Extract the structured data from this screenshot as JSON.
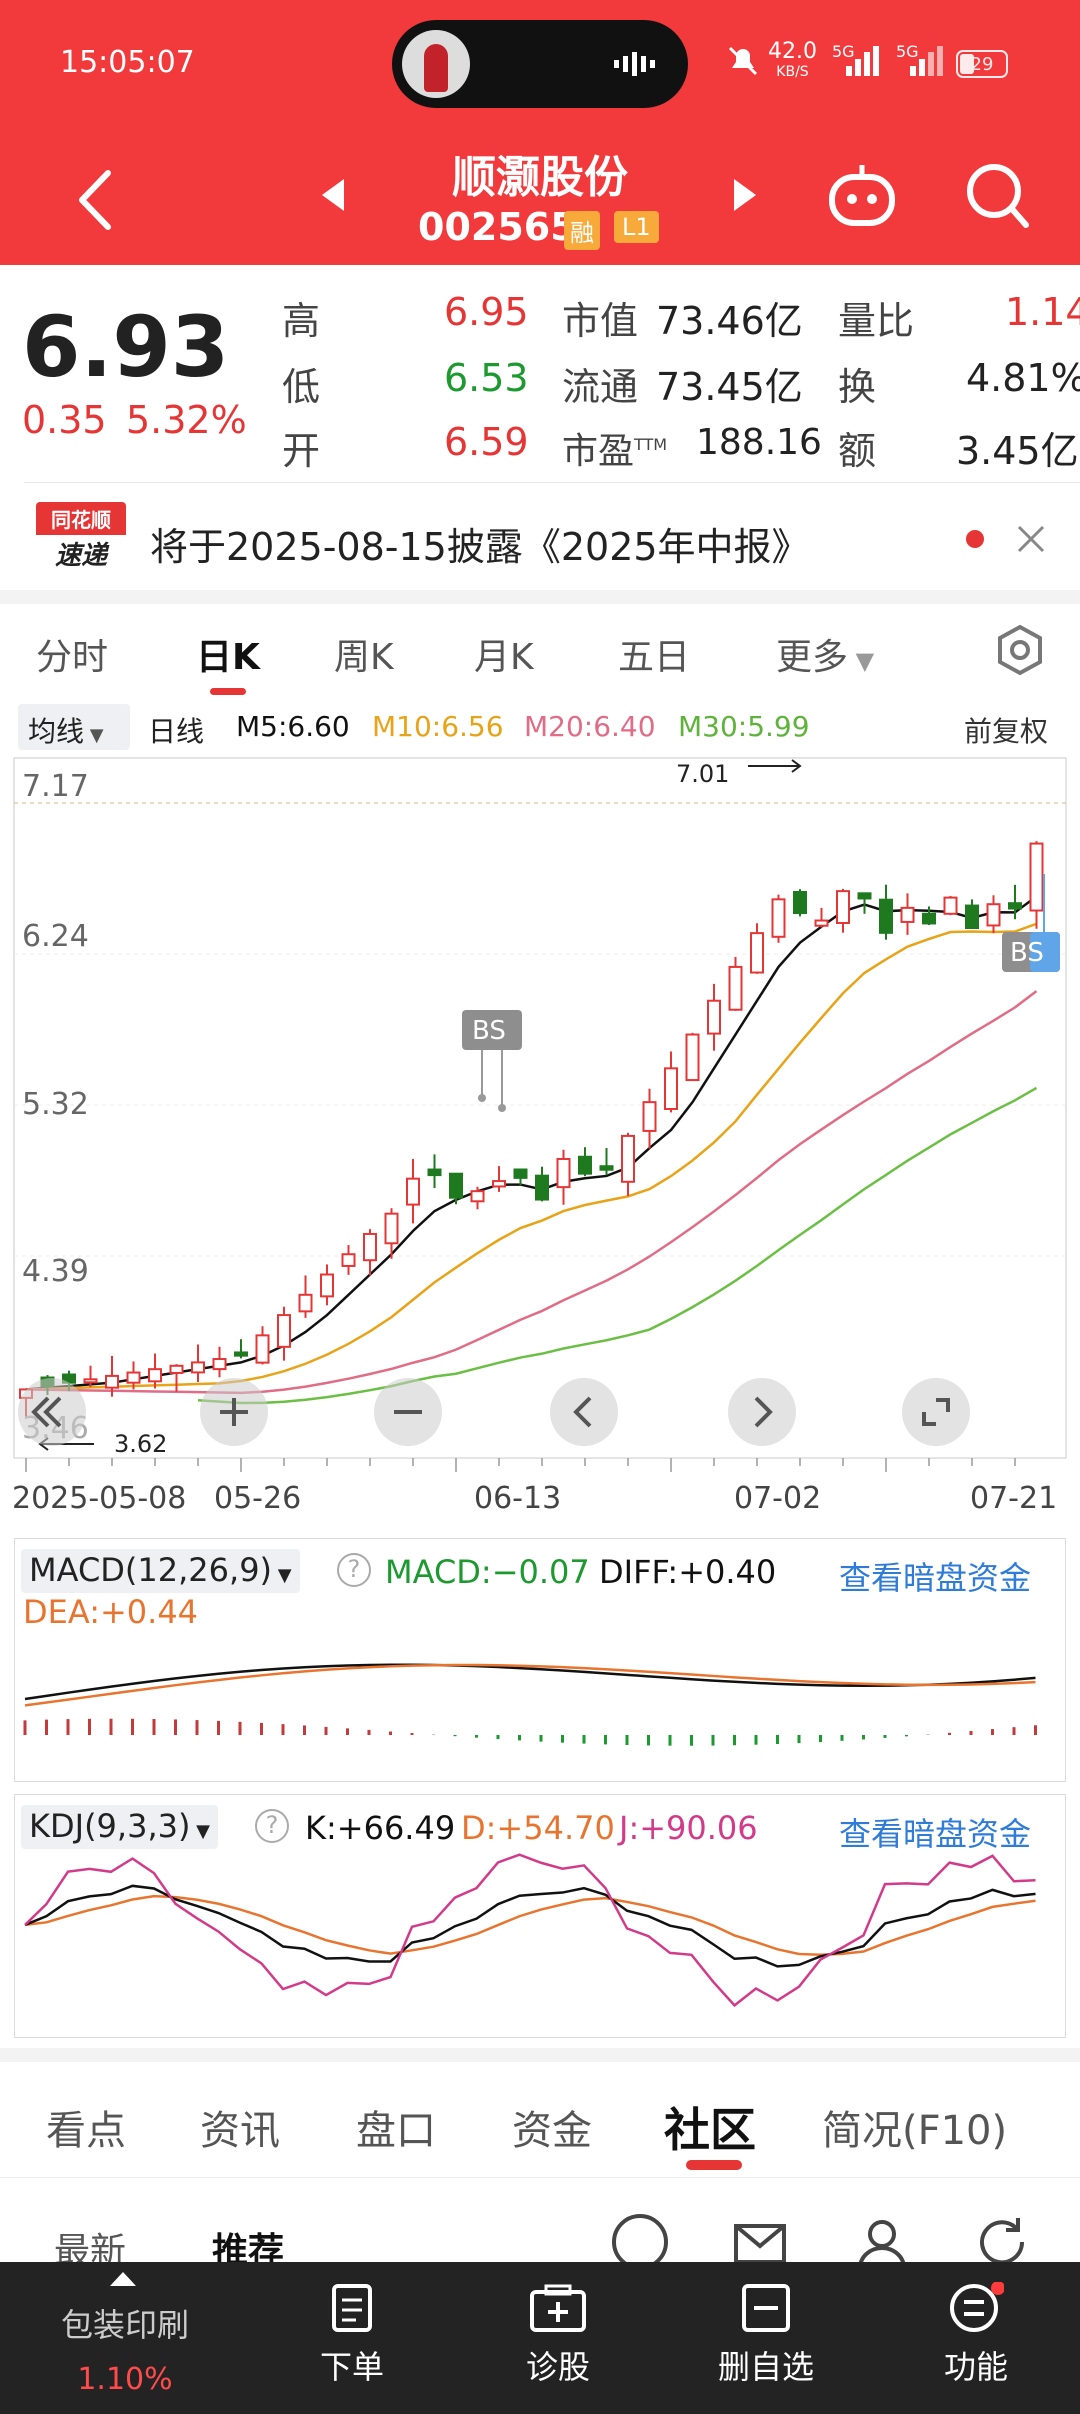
{
  "status": {
    "time": "15:05:07",
    "net_speed": "42.0",
    "net_unit": "KB/S",
    "sig1": "5G",
    "sig2": "5G",
    "battery": "29"
  },
  "header": {
    "title": "顺灏股份",
    "code": "002565",
    "badge1": "融",
    "badge2": "L1"
  },
  "quote": {
    "price": "6.93",
    "change": "0.35",
    "pct": "5.32%",
    "high_label": "高",
    "high": "6.95",
    "low_label": "低",
    "low": "6.53",
    "open_label": "开",
    "open": "6.59",
    "mcap_label": "市值",
    "mcap": "73.46亿",
    "float_label": "流通",
    "float": "73.45亿",
    "pe_label": "市盈",
    "pe_sup": "TTM",
    "pe": "188.16",
    "vr_label": "量比",
    "vr": "1.14",
    "turn_label": "换",
    "turn": "4.81%",
    "amt_label": "额",
    "amt": "3.45亿"
  },
  "notice": {
    "logo_top": "同花顺",
    "logo_bottom": "速递",
    "text": "将于2025-08-15披露《2025年中报》"
  },
  "period_tabs": [
    "分时",
    "日K",
    "周K",
    "月K",
    "五日",
    "更多"
  ],
  "ma_bar": {
    "ma_select": "均线",
    "line": "日线",
    "m5": "M5:6.60",
    "m10": "M10:6.56",
    "m20": "M20:6.40",
    "m30": "M30:5.99",
    "adjust": "前复权"
  },
  "kline": {
    "y_labels": [
      "7.17",
      "6.24",
      "5.32",
      "4.39",
      "3.46"
    ],
    "max_label": "7.01",
    "min_label": "3.62",
    "bs_label": "BS",
    "x_labels": [
      "2025-05-08",
      "05-26",
      "06-13",
      "07-02",
      "07-21"
    ]
  },
  "macd": {
    "title": "MACD(12,26,9)",
    "macd": "MACD:−0.07",
    "diff": "DIFF:+0.40",
    "dea": "DEA:+0.44",
    "link": "查看暗盘资金"
  },
  "kdj": {
    "title": "KDJ(9,3,3)",
    "k": "K:+66.49",
    "d": "D:+54.70",
    "j": "J:+90.06",
    "link": "查看暗盘资金"
  },
  "content_tabs": [
    "看点",
    "资讯",
    "盘口",
    "资金",
    "社区",
    "简况(F10)"
  ],
  "sub_tabs": [
    "最新",
    "推荐"
  ],
  "bottom": {
    "sector": "包装印刷",
    "sector_pct": "1.10%",
    "order": "下单",
    "diagnose": "诊股",
    "remove": "删自选",
    "function": "功能"
  },
  "colors": {
    "red": "#e53535",
    "green": "#1c9a2f",
    "header": "#f23a3c",
    "ma5": "#111111",
    "ma10": "#e8a317",
    "ma20": "#e06c86",
    "ma30": "#6bbf44"
  }
}
